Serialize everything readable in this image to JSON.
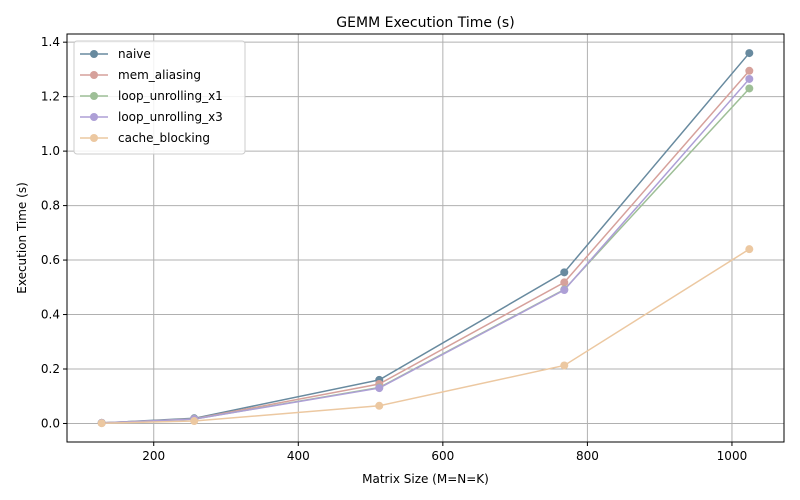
{
  "chart_data": {
    "type": "line",
    "title": "GEMM Execution Time (s)",
    "xlabel": "Matrix Size (M=N=K)",
    "ylabel": "Execution Time (s)",
    "x": [
      128,
      256,
      512,
      768,
      1024
    ],
    "xlim": [
      80,
      1072
    ],
    "ylim": [
      -0.068,
      1.43
    ],
    "xticks": [
      200,
      400,
      600,
      800,
      1000
    ],
    "yticks": [
      0.0,
      0.2,
      0.4,
      0.6,
      0.8,
      1.0,
      1.2,
      1.4
    ],
    "xtick_labels": [
      "200",
      "400",
      "600",
      "800",
      "1000"
    ],
    "ytick_labels": [
      "0.0",
      "0.2",
      "0.4",
      "0.6",
      "0.8",
      "1.0",
      "1.2",
      "1.4"
    ],
    "grid": true,
    "legend_position": "upper-left",
    "series": [
      {
        "name": "naive",
        "color": "#688a9f",
        "values": [
          0.002,
          0.019,
          0.16,
          0.555,
          1.36
        ]
      },
      {
        "name": "mem_aliasing",
        "color": "#d6a19b",
        "values": [
          0.002,
          0.017,
          0.145,
          0.518,
          1.295
        ]
      },
      {
        "name": "loop_unrolling_x1",
        "color": "#9ebf97",
        "values": [
          0.002,
          0.016,
          0.132,
          0.492,
          1.23
        ]
      },
      {
        "name": "loop_unrolling_x3",
        "color": "#ad9fd6",
        "values": [
          0.002,
          0.016,
          0.13,
          0.49,
          1.265
        ]
      },
      {
        "name": "cache_blocking",
        "color": "#ecc8a1",
        "values": [
          0.001,
          0.009,
          0.065,
          0.213,
          0.64
        ]
      }
    ]
  }
}
